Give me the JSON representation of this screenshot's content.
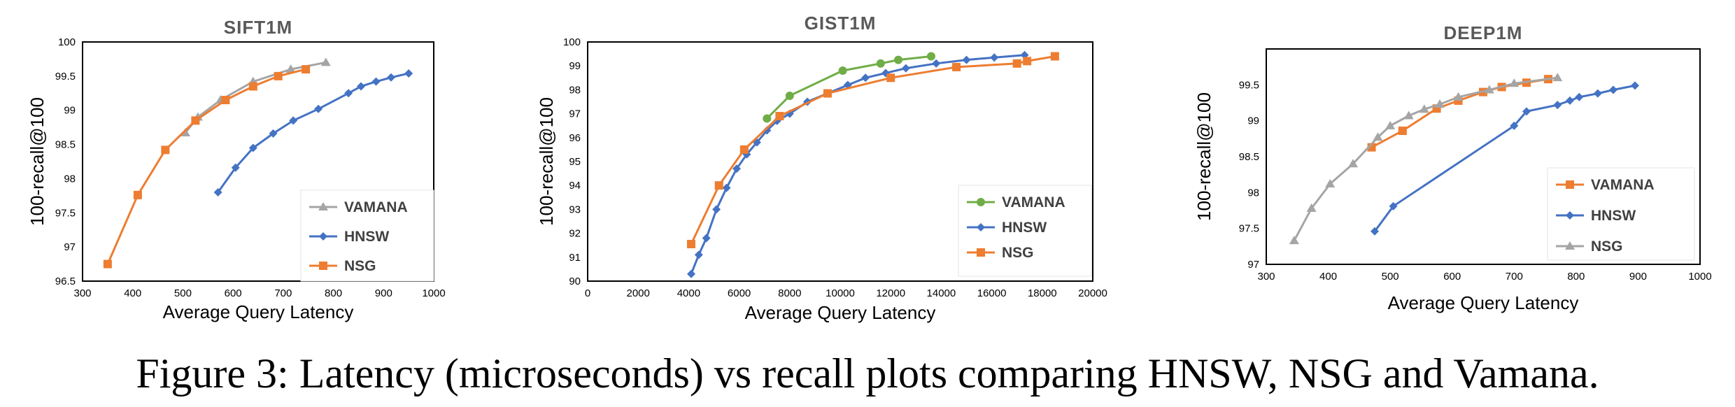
{
  "caption": "Figure 3: Latency (microseconds) vs recall plots comparing HNSW, NSG and Vamana.",
  "colors": {
    "vamana_gray": "#A5A5A5",
    "vamana_green": "#70AD47",
    "hnsw": "#4472C4",
    "nsg": "#ED7D31"
  },
  "chart_data": [
    {
      "type": "line",
      "title": "SIFT1M",
      "xlabel": "Average Query Latency",
      "ylabel": "100-recall@100",
      "xlim": [
        300,
        1000
      ],
      "ylim": [
        96.5,
        100
      ],
      "xticks": [
        "300",
        "400",
        "500",
        "600",
        "700",
        "800",
        "900",
        "1000"
      ],
      "yticks": [
        "96.5",
        "97",
        "97.5",
        "98",
        "98.5",
        "99",
        "99.5",
        "100"
      ],
      "legend_position": "bottom-right",
      "series": [
        {
          "name": "VAMANA",
          "marker": "triangle",
          "color": "#A5A5A5",
          "x": [
            505,
            530,
            575,
            640,
            715,
            785
          ],
          "y": [
            98.67,
            98.9,
            99.15,
            99.42,
            99.6,
            99.7
          ]
        },
        {
          "name": "HNSW",
          "marker": "diamond",
          "color": "#4472C4",
          "x": [
            570,
            605,
            640,
            680,
            720,
            770,
            830,
            855,
            885,
            915,
            950
          ],
          "y": [
            97.8,
            98.16,
            98.45,
            98.66,
            98.85,
            99.02,
            99.25,
            99.35,
            99.42,
            99.48,
            99.54
          ]
        },
        {
          "name": "NSG",
          "marker": "square",
          "color": "#ED7D31",
          "x": [
            350,
            410,
            465,
            525,
            585,
            640,
            690,
            745
          ],
          "y": [
            96.75,
            97.76,
            98.42,
            98.85,
            99.15,
            99.35,
            99.5,
            99.6
          ]
        }
      ]
    },
    {
      "type": "line",
      "title": "GIST1M",
      "xlabel": "Average Query Latency",
      "ylabel": "100-recall@100",
      "xlim": [
        0,
        20000
      ],
      "ylim": [
        90,
        100
      ],
      "xticks": [
        "0",
        "2000",
        "4000",
        "6000",
        "8000",
        "10000",
        "12000",
        "14000",
        "16000",
        "18000",
        "20000"
      ],
      "yticks": [
        "90",
        "91",
        "92",
        "93",
        "94",
        "95",
        "96",
        "97",
        "98",
        "99",
        "100"
      ],
      "legend_position": "bottom-right",
      "series": [
        {
          "name": "VAMANA",
          "marker": "circle",
          "color": "#70AD47",
          "x": [
            7100,
            8000,
            10100,
            11600,
            12300,
            13600
          ],
          "y": [
            96.8,
            97.75,
            98.8,
            99.1,
            99.25,
            99.4
          ]
        },
        {
          "name": "HNSW",
          "marker": "diamond",
          "color": "#4472C4",
          "x": [
            4100,
            4400,
            4700,
            5100,
            5500,
            5900,
            6300,
            6700,
            7100,
            7500,
            8000,
            8700,
            9500,
            10300,
            11000,
            11800,
            12600,
            13800,
            15000,
            16100,
            17300
          ],
          "y": [
            90.3,
            91.1,
            91.8,
            93.0,
            93.9,
            94.7,
            95.3,
            95.8,
            96.3,
            96.7,
            97.0,
            97.5,
            97.85,
            98.2,
            98.5,
            98.7,
            98.9,
            99.1,
            99.25,
            99.35,
            99.45
          ]
        },
        {
          "name": "NSG",
          "marker": "square",
          "color": "#ED7D31",
          "x": [
            4100,
            5200,
            6200,
            7600,
            9500,
            12000,
            14600,
            17000,
            17400,
            18500
          ],
          "y": [
            91.55,
            94.0,
            95.5,
            96.9,
            97.85,
            98.5,
            98.95,
            99.1,
            99.2,
            99.4
          ]
        }
      ]
    },
    {
      "type": "line",
      "title": "DEEP1M",
      "xlabel": "Average Query Latency",
      "ylabel": "100-recall@100",
      "xlim": [
        300,
        1000
      ],
      "ylim": [
        97,
        100
      ],
      "xticks": [
        "300",
        "400",
        "500",
        "600",
        "700",
        "800",
        "900",
        "1000"
      ],
      "yticks": [
        "97",
        "97.5",
        "98",
        "98.5",
        "99",
        "99.5"
      ],
      "legend_position": "bottom-right",
      "series": [
        {
          "name": "VAMANA",
          "marker": "square",
          "color": "#ED7D31",
          "x": [
            470,
            520,
            575,
            610,
            650,
            680,
            720,
            755
          ],
          "y": [
            98.63,
            98.86,
            99.17,
            99.28,
            99.4,
            99.47,
            99.53,
            99.58
          ]
        },
        {
          "name": "HNSW",
          "marker": "diamond",
          "color": "#4472C4",
          "x": [
            475,
            505,
            700,
            720,
            770,
            790,
            805,
            835,
            860,
            895
          ],
          "y": [
            97.46,
            97.81,
            98.93,
            99.13,
            99.22,
            99.28,
            99.33,
            99.38,
            99.43,
            99.49
          ]
        },
        {
          "name": "NSG",
          "marker": "triangle",
          "color": "#A5A5A5",
          "x": [
            345,
            373,
            403,
            440,
            480,
            500,
            530,
            555,
            580,
            610,
            660,
            700,
            770
          ],
          "y": [
            97.33,
            97.78,
            98.12,
            98.4,
            98.77,
            98.93,
            99.07,
            99.16,
            99.23,
            99.33,
            99.43,
            99.52,
            99.6
          ]
        }
      ]
    }
  ]
}
